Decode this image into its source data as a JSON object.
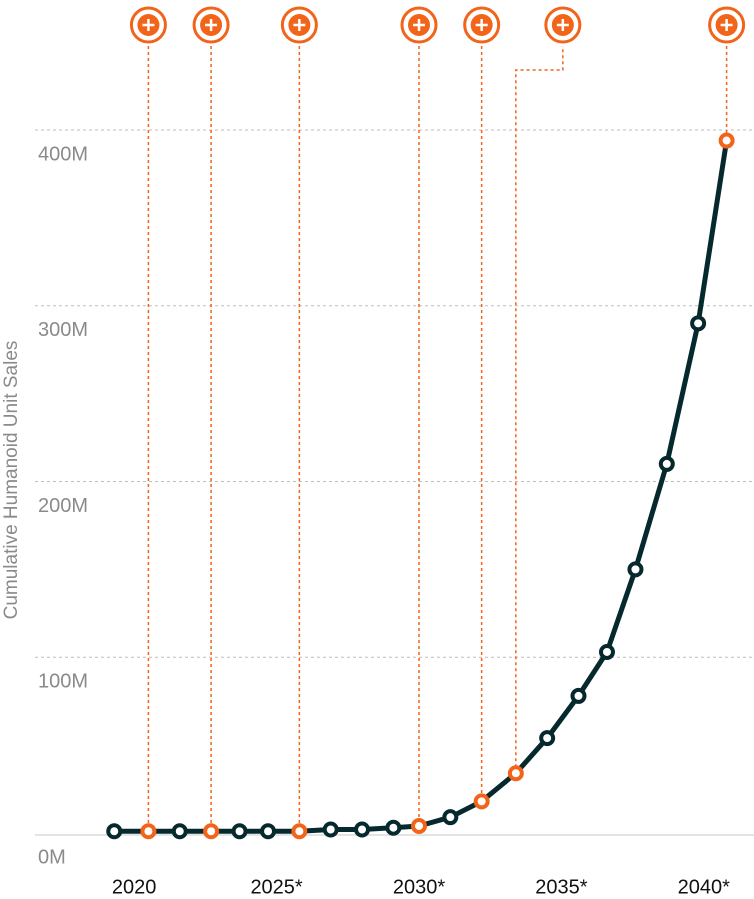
{
  "chart_data": {
    "type": "line",
    "y_label": "Cumulative Humanoid Unit Sales",
    "x": [
      2019.3,
      2020.5,
      2021.6,
      2022.7,
      2023.7,
      2024.7,
      2025.8,
      2026.9,
      2028.0,
      2029.1,
      2030.0,
      2031.1,
      2032.2,
      2033.4,
      2034.5,
      2035.6,
      2036.6,
      2037.6,
      2038.7,
      2039.8,
      2040.8
    ],
    "values": [
      1,
      1,
      1,
      1,
      1,
      1,
      1,
      2,
      2,
      3,
      4,
      9,
      18,
      34,
      54,
      78,
      103,
      150,
      210,
      290,
      394
    ],
    "line_color": "#06292e",
    "marker_colors": [
      "#06292e",
      "#f26419",
      "#06292e",
      "#f26419",
      "#06292e",
      "#06292e",
      "#f26419",
      "#06292e",
      "#06292e",
      "#06292e",
      "#f26419",
      "#06292e",
      "#f26419",
      "#f26419",
      "#06292e",
      "#06292e",
      "#06292e",
      "#06292e",
      "#06292e",
      "#06292e",
      "#f26419"
    ],
    "xlim": [
      2018.8,
      2041.2
    ],
    "xticks": [
      {
        "value": 2020,
        "label": "2020"
      },
      {
        "value": 2025,
        "label": "2025*"
      },
      {
        "value": 2030,
        "label": "2030*"
      },
      {
        "value": 2035,
        "label": "2035*"
      },
      {
        "value": 2040,
        "label": "2040*"
      }
    ],
    "ylim": [
      0,
      400
    ],
    "yticks": [
      {
        "value": 0,
        "label": "0M"
      },
      {
        "value": 100,
        "label": "100M"
      },
      {
        "value": 200,
        "label": "200M"
      },
      {
        "value": 300,
        "label": "300M"
      },
      {
        "value": 400,
        "label": "400M"
      }
    ],
    "grid": true
  }
}
